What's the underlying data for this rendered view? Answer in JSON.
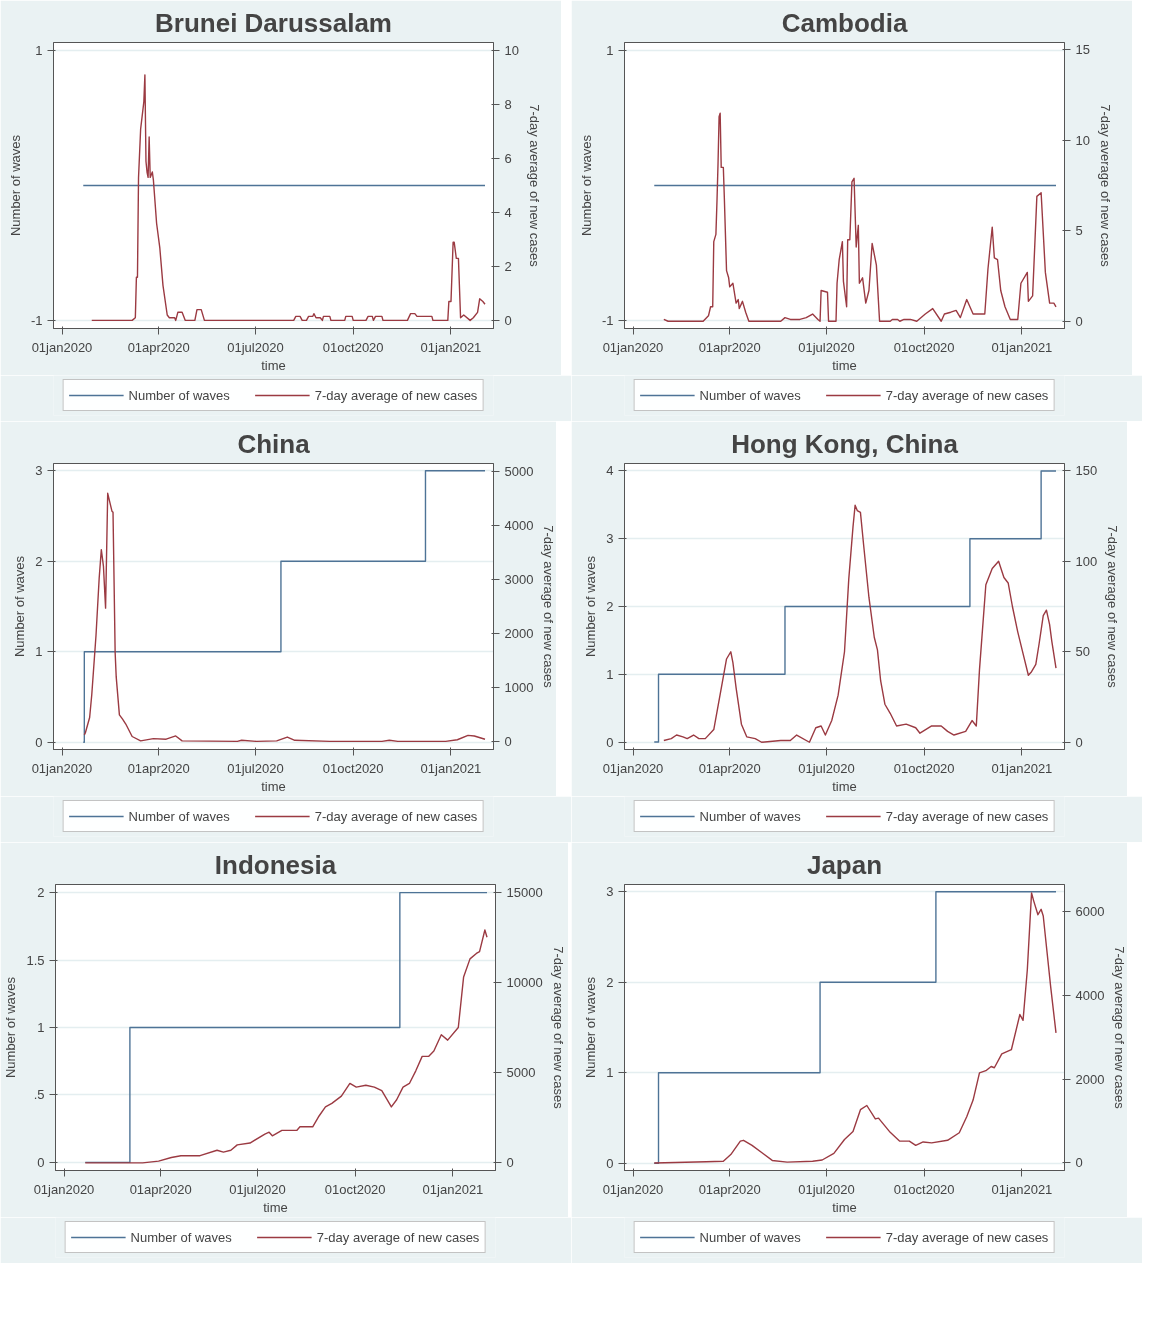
{
  "chart_data": [
    {
      "type": "line",
      "title": "Brunei Darussalam",
      "xlabel": "time",
      "ylabel": "Number of waves",
      "y2label": "7-day average of new cases",
      "xlim": [
        "2019-12-24",
        "2021-02-10"
      ],
      "xticks": [
        {
          "value": "2020-01-01",
          "label": "01jan2020"
        },
        {
          "value": "2020-04-01",
          "label": "01apr2020"
        },
        {
          "value": "2020-07-01",
          "label": "01jul2020"
        },
        {
          "value": "2020-10-01",
          "label": "01oct2020"
        },
        {
          "value": "2021-01-01",
          "label": "01jan2021"
        }
      ],
      "ylim": [
        -1.06,
        1.06
      ],
      "yticks": [
        -1,
        1
      ],
      "y2lim": [
        -0.3,
        10.3
      ],
      "y2ticks": [
        0,
        2,
        4,
        6,
        8,
        10
      ],
      "grid": "y",
      "legend": "bottom",
      "series": [
        {
          "name": "Number of waves",
          "type": "step",
          "color": "#4e7396",
          "x": [
            "2020-01-21",
            "2021-02-02"
          ],
          "values": [
            0,
            0
          ]
        },
        {
          "name": "7-day average of new cases",
          "axis": "y2",
          "color": "#9b3a42",
          "x": [
            "2020-01-29",
            "2020-03-07",
            "2020-03-10",
            "2020-03-11",
            "2020-03-12",
            "2020-03-13",
            "2020-03-15",
            "2020-03-18",
            "2020-03-19",
            "2020-03-20",
            "2020-03-21",
            "2020-03-22",
            "2020-03-23",
            "2020-03-24",
            "2020-03-26",
            "2020-03-27",
            "2020-03-30",
            "2020-04-02",
            "2020-04-05",
            "2020-04-09",
            "2020-04-11",
            "2020-04-16",
            "2020-04-17",
            "2020-04-19",
            "2020-04-23",
            "2020-04-26",
            "2020-05-05",
            "2020-05-07",
            "2020-05-11",
            "2020-05-14",
            "2020-08-06",
            "2020-08-08",
            "2020-08-12",
            "2020-08-14",
            "2020-08-18",
            "2020-08-20",
            "2020-08-24",
            "2020-08-25",
            "2020-08-27",
            "2020-08-31",
            "2020-09-02",
            "2020-09-03",
            "2020-09-09",
            "2020-09-10",
            "2020-09-23",
            "2020-09-24",
            "2020-09-30",
            "2020-10-01",
            "2020-10-13",
            "2020-10-15",
            "2020-10-19",
            "2020-10-20",
            "2020-10-22",
            "2020-10-28",
            "2020-10-29",
            "2020-11-21",
            "2020-11-24",
            "2020-11-28",
            "2020-11-30",
            "2020-12-14",
            "2020-12-15",
            "2020-12-29",
            "2020-12-30",
            "2021-01-01",
            "2021-01-03",
            "2021-01-04",
            "2021-01-06",
            "2021-01-08",
            "2021-01-10",
            "2021-01-13",
            "2021-01-19",
            "2021-01-22",
            "2021-01-26",
            "2021-01-28",
            "2021-01-31",
            "2021-02-02"
          ],
          "values": [
            0,
            0,
            0.1,
            1.6,
            1.6,
            5.3,
            7.1,
            8.1,
            9.1,
            5.9,
            5.5,
            5.3,
            6.8,
            5.3,
            5.5,
            5.2,
            3.6,
            2.7,
            1.3,
            0.2,
            0.1,
            0.1,
            0,
            0.3,
            0.3,
            0,
            0,
            0.4,
            0.4,
            0,
            0,
            0.15,
            0.15,
            0,
            0,
            0.15,
            0.15,
            0.25,
            0.1,
            0.1,
            0,
            0.15,
            0.15,
            0,
            0,
            0.15,
            0.15,
            0,
            0,
            0.15,
            0.15,
            0,
            0.15,
            0.15,
            0,
            0,
            0.25,
            0.25,
            0.15,
            0.15,
            0,
            0,
            0.7,
            0.7,
            2.9,
            2.9,
            2.3,
            2.3,
            0.1,
            0.2,
            0,
            0.1,
            0.3,
            0.8,
            0.7,
            0.6
          ]
        }
      ]
    },
    {
      "type": "line",
      "title": "Cambodia",
      "xlabel": "time",
      "ylabel": "Number of waves",
      "y2label": "7-day average of new cases",
      "xlim": [
        "2019-12-24",
        "2021-02-10"
      ],
      "xticks": [
        {
          "value": "2020-01-01",
          "label": "01jan2020"
        },
        {
          "value": "2020-04-01",
          "label": "01apr2020"
        },
        {
          "value": "2020-07-01",
          "label": "01jul2020"
        },
        {
          "value": "2020-10-01",
          "label": "01oct2020"
        },
        {
          "value": "2021-01-01",
          "label": "01jan2021"
        }
      ],
      "ylim": [
        -1.06,
        1.06
      ],
      "yticks": [
        -1,
        1
      ],
      "y2lim": [
        -0.4,
        15.4
      ],
      "y2ticks": [
        0,
        5,
        10,
        15
      ],
      "grid": "y",
      "legend": "bottom",
      "series": [
        {
          "name": "Number of waves",
          "type": "step",
          "color": "#4e7396",
          "x": [
            "2020-01-21",
            "2021-02-02"
          ],
          "values": [
            0,
            0
          ]
        },
        {
          "name": "7-day average of new cases",
          "axis": "y2",
          "color": "#9b3a42",
          "x": [
            "2020-01-30",
            "2020-02-03",
            "2020-03-07",
            "2020-03-12",
            "2020-03-14",
            "2020-03-16",
            "2020-03-17",
            "2020-03-19",
            "2020-03-20",
            "2020-03-21",
            "2020-03-22",
            "2020-03-23",
            "2020-03-24",
            "2020-03-26",
            "2020-03-27",
            "2020-03-29",
            "2020-03-31",
            "2020-04-01",
            "2020-04-04",
            "2020-04-07",
            "2020-04-09",
            "2020-04-10",
            "2020-04-13",
            "2020-04-16",
            "2020-04-19",
            "2020-05-19",
            "2020-05-23",
            "2020-05-28",
            "2020-06-06",
            "2020-06-12",
            "2020-06-18",
            "2020-06-23",
            "2020-06-25",
            "2020-06-26",
            "2020-07-02",
            "2020-07-03",
            "2020-07-10",
            "2020-07-11",
            "2020-07-13",
            "2020-07-16",
            "2020-07-17",
            "2020-07-20",
            "2020-07-21",
            "2020-07-23",
            "2020-07-25",
            "2020-07-27",
            "2020-07-29",
            "2020-07-31",
            "2020-08-01",
            "2020-08-04",
            "2020-08-07",
            "2020-08-10",
            "2020-08-13",
            "2020-08-17",
            "2020-08-20",
            "2020-08-30",
            "2020-09-01",
            "2020-09-06",
            "2020-09-08",
            "2020-09-12",
            "2020-09-18",
            "2020-09-24",
            "2020-10-02",
            "2020-10-09",
            "2020-10-17",
            "2020-10-20",
            "2020-10-26",
            "2020-10-31",
            "2020-11-04",
            "2020-11-10",
            "2020-11-16",
            "2020-11-27",
            "2020-11-30",
            "2020-12-04",
            "2020-12-06",
            "2020-12-09",
            "2020-12-12",
            "2020-12-16",
            "2020-12-21",
            "2020-12-28",
            "2020-12-31",
            "2021-01-06",
            "2021-01-07",
            "2021-01-11",
            "2021-01-15",
            "2021-01-19",
            "2021-01-23",
            "2021-01-27",
            "2021-01-31",
            "2021-02-02"
          ],
          "values": [
            0.1,
            0,
            0,
            0.3,
            0.8,
            0.8,
            4.4,
            4.8,
            6.6,
            8.7,
            11.3,
            11.5,
            8.5,
            8.5,
            6.7,
            2.8,
            2.4,
            1.9,
            2.1,
            1.0,
            1.2,
            0.7,
            1.1,
            0.5,
            0,
            0,
            0.2,
            0.1,
            0.1,
            0.2,
            0.4,
            0.1,
            0,
            1.7,
            1.6,
            0,
            0,
            2.1,
            3.4,
            4.4,
            2.2,
            0.8,
            4.5,
            4.5,
            7.7,
            7.9,
            4.1,
            5.3,
            2.1,
            2.4,
            1.0,
            1.7,
            4.3,
            3.1,
            0,
            0,
            0.1,
            0.1,
            0,
            0.1,
            0.1,
            0,
            0.4,
            0.7,
            0,
            0.4,
            0.5,
            0.6,
            0.2,
            1.2,
            0.4,
            0.4,
            2.9,
            5.2,
            3.5,
            3.4,
            1.7,
            0.8,
            0.1,
            0.1,
            2.1,
            2.7,
            1.1,
            1.4,
            6.9,
            7.1,
            2.7,
            1.0,
            1.0,
            0.8
          ]
        }
      ]
    },
    {
      "type": "line",
      "title": "China",
      "xlabel": "time",
      "ylabel": "Number of waves",
      "y2label": "7-day average of new cases",
      "xlim": [
        "2019-12-24",
        "2021-02-10"
      ],
      "xticks": [
        {
          "value": "2020-01-01",
          "label": "01jan2020"
        },
        {
          "value": "2020-04-01",
          "label": "01apr2020"
        },
        {
          "value": "2020-07-01",
          "label": "01jul2020"
        },
        {
          "value": "2020-10-01",
          "label": "01oct2020"
        },
        {
          "value": "2021-01-01",
          "label": "01jan2021"
        }
      ],
      "ylim": [
        -0.08,
        3.08
      ],
      "yticks": [
        0,
        1,
        2,
        3
      ],
      "y2lim": [
        -140,
        5140
      ],
      "y2ticks": [
        0,
        1000,
        2000,
        3000,
        4000,
        5000
      ],
      "grid": "y",
      "legend": "bottom",
      "series": [
        {
          "name": "Number of waves",
          "type": "step",
          "color": "#4e7396",
          "x": [
            "2020-01-21",
            "2020-01-22",
            "2020-07-25",
            "2020-12-08",
            "2021-02-02"
          ],
          "values": [
            0,
            1,
            2,
            3,
            3
          ]
        },
        {
          "name": "7-day average of new cases",
          "axis": "y2",
          "color": "#9b3a42",
          "x": [
            "2020-01-22",
            "2020-01-23",
            "2020-01-27",
            "2020-01-29",
            "2020-02-02",
            "2020-02-05",
            "2020-02-07",
            "2020-02-09",
            "2020-02-11",
            "2020-02-13",
            "2020-02-17",
            "2020-02-18",
            "2020-02-20",
            "2020-02-21",
            "2020-02-24",
            "2020-02-27",
            "2020-03-01",
            "2020-03-07",
            "2020-03-15",
            "2020-03-27",
            "2020-04-08",
            "2020-04-17",
            "2020-04-23",
            "2020-06-14",
            "2020-06-18",
            "2020-07-02",
            "2020-07-21",
            "2020-07-31",
            "2020-08-07",
            "2020-09-09",
            "2020-10-28",
            "2020-11-04",
            "2020-11-12",
            "2020-12-27",
            "2021-01-07",
            "2021-01-17",
            "2021-01-23",
            "2021-02-02"
          ],
          "values": [
            130,
            170,
            450,
            870,
            1970,
            3030,
            3550,
            3240,
            2470,
            4590,
            4260,
            4240,
            1650,
            1200,
            500,
            420,
            330,
            100,
            20,
            60,
            50,
            110,
            20,
            10,
            30,
            10,
            20,
            90,
            30,
            10,
            10,
            30,
            10,
            10,
            40,
            120,
            110,
            50
          ]
        }
      ]
    },
    {
      "type": "line",
      "title": "Hong Kong, China",
      "xlabel": "time",
      "ylabel": "Number of waves",
      "y2label": "7-day average of new cases",
      "xlim": [
        "2019-12-24",
        "2021-02-10"
      ],
      "xticks": [
        {
          "value": "2020-01-01",
          "label": "01jan2020"
        },
        {
          "value": "2020-04-01",
          "label": "01apr2020"
        },
        {
          "value": "2020-07-01",
          "label": "01jul2020"
        },
        {
          "value": "2020-10-01",
          "label": "01oct2020"
        },
        {
          "value": "2021-01-01",
          "label": "01jan2021"
        }
      ],
      "ylim": [
        -0.11,
        4.11
      ],
      "yticks": [
        0,
        1,
        2,
        3,
        4
      ],
      "y2lim": [
        -4,
        154
      ],
      "y2ticks": [
        0,
        50,
        100,
        150
      ],
      "grid": "y",
      "legend": "bottom",
      "series": [
        {
          "name": "Number of waves",
          "type": "step",
          "color": "#4e7396",
          "x": [
            "2020-01-21",
            "2020-01-25",
            "2020-05-23",
            "2020-11-13",
            "2021-01-19",
            "2021-02-02"
          ],
          "values": [
            0,
            1,
            2,
            3,
            4,
            4
          ]
        },
        {
          "name": "7-day average of new cases",
          "axis": "y2",
          "color": "#9b3a42",
          "x": [
            "2020-01-30",
            "2020-02-06",
            "2020-02-11",
            "2020-02-17",
            "2020-02-21",
            "2020-02-27",
            "2020-03-03",
            "2020-03-09",
            "2020-03-17",
            "2020-03-21",
            "2020-03-25",
            "2020-03-29",
            "2020-04-02",
            "2020-04-04",
            "2020-04-07",
            "2020-04-12",
            "2020-04-17",
            "2020-04-25",
            "2020-05-01",
            "2020-05-19",
            "2020-05-28",
            "2020-06-03",
            "2020-06-15",
            "2020-06-21",
            "2020-06-26",
            "2020-06-30",
            "2020-07-06",
            "2020-07-12",
            "2020-07-15",
            "2020-07-18",
            "2020-07-22",
            "2020-07-26",
            "2020-07-28",
            "2020-07-30",
            "2020-08-02",
            "2020-08-05",
            "2020-08-10",
            "2020-08-15",
            "2020-08-18",
            "2020-08-21",
            "2020-08-25",
            "2020-08-30",
            "2020-09-05",
            "2020-09-14",
            "2020-09-23",
            "2020-09-27",
            "2020-10-08",
            "2020-10-17",
            "2020-10-23",
            "2020-10-29",
            "2020-11-09",
            "2020-11-15",
            "2020-11-19",
            "2020-11-22",
            "2020-11-28",
            "2020-12-04",
            "2020-12-10",
            "2020-12-15",
            "2020-12-19",
            "2020-12-23",
            "2020-12-28",
            "2021-01-02",
            "2021-01-07",
            "2021-01-10",
            "2021-01-14",
            "2021-01-17",
            "2021-01-21",
            "2021-01-24",
            "2021-01-27",
            "2021-01-29",
            "2021-02-02"
          ],
          "values": [
            1,
            2,
            4,
            3,
            2,
            4,
            2,
            2,
            7,
            20,
            33,
            46,
            50,
            44,
            30,
            10,
            3,
            2,
            0,
            1,
            1,
            4,
            0,
            8,
            9,
            4,
            12,
            26,
            38,
            50,
            90,
            119,
            131,
            128,
            127,
            109,
            80,
            58,
            51,
            34,
            21,
            16,
            9,
            10,
            8,
            5,
            9,
            9,
            6,
            4,
            6,
            12,
            9,
            40,
            87,
            96,
            100,
            91,
            88,
            75,
            61,
            49,
            37,
            39,
            43,
            54,
            70,
            73,
            65,
            56,
            41
          ]
        }
      ]
    },
    {
      "type": "line",
      "title": "Indonesia",
      "xlabel": "time",
      "ylabel": "Number of waves",
      "y2label": "7-day average of new cases",
      "xlim": [
        "2019-12-24",
        "2021-02-10"
      ],
      "xticks": [
        {
          "value": "2020-01-01",
          "label": "01jan2020"
        },
        {
          "value": "2020-04-01",
          "label": "01apr2020"
        },
        {
          "value": "2020-07-01",
          "label": "01jul2020"
        },
        {
          "value": "2020-10-01",
          "label": "01oct2020"
        },
        {
          "value": "2021-01-01",
          "label": "01jan2021"
        }
      ],
      "ylim": [
        -0.06,
        2.06
      ],
      "yticks": [
        0,
        {
          "value": 0.5,
          "label": ".5"
        },
        1,
        1.5,
        2
      ],
      "y2lim": [
        -420,
        15420
      ],
      "y2ticks": [
        0,
        5000,
        10000,
        15000
      ],
      "grid": "y",
      "legend": "bottom",
      "series": [
        {
          "name": "Number of waves",
          "type": "step",
          "color": "#4e7396",
          "x": [
            "2020-01-21",
            "2020-03-03",
            "2020-11-12",
            "2021-02-02"
          ],
          "values": [
            0,
            1,
            2,
            2
          ]
        },
        {
          "name": "7-day average of new cases",
          "axis": "y2",
          "color": "#9b3a42",
          "x": [
            "2020-01-21",
            "2020-03-15",
            "2020-03-30",
            "2020-04-11",
            "2020-04-20",
            "2020-05-08",
            "2020-05-24",
            "2020-05-30",
            "2020-06-06",
            "2020-06-12",
            "2020-06-24",
            "2020-07-08",
            "2020-07-12",
            "2020-07-15",
            "2020-07-24",
            "2020-08-07",
            "2020-08-10",
            "2020-08-22",
            "2020-08-28",
            "2020-09-03",
            "2020-09-09",
            "2020-09-18",
            "2020-09-26",
            "2020-10-02",
            "2020-10-11",
            "2020-10-19",
            "2020-10-26",
            "2020-10-31",
            "2020-11-04",
            "2020-11-09",
            "2020-11-15",
            "2020-11-21",
            "2020-11-27",
            "2020-12-03",
            "2020-12-09",
            "2020-12-14",
            "2020-12-21",
            "2020-12-27",
            "2021-01-06",
            "2021-01-11",
            "2021-01-17",
            "2021-01-23",
            "2021-01-26",
            "2021-01-31",
            "2021-02-02"
          ],
          "values": [
            0,
            0,
            100,
            300,
            400,
            400,
            700,
            600,
            700,
            1000,
            1100,
            1600,
            1700,
            1500,
            1800,
            1800,
            2000,
            2000,
            2600,
            3100,
            3300,
            3700,
            4400,
            4200,
            4300,
            4200,
            4000,
            3500,
            3100,
            3500,
            4200,
            4400,
            5100,
            5900,
            5900,
            6200,
            7100,
            6800,
            7500,
            10300,
            11300,
            11600,
            11700,
            12900,
            12500
          ]
        }
      ]
    },
    {
      "type": "line",
      "title": "Japan",
      "xlabel": "time",
      "ylabel": "Number of waves",
      "y2label": "7-day average of new cases",
      "xlim": [
        "2019-12-24",
        "2021-02-10"
      ],
      "xticks": [
        {
          "value": "2020-01-01",
          "label": "01jan2020"
        },
        {
          "value": "2020-04-01",
          "label": "01apr2020"
        },
        {
          "value": "2020-07-01",
          "label": "01jul2020"
        },
        {
          "value": "2020-10-01",
          "label": "01oct2020"
        },
        {
          "value": "2021-01-01",
          "label": "01jan2021"
        }
      ],
      "ylim": [
        -0.08,
        3.08
      ],
      "yticks": [
        0,
        1,
        2,
        3
      ],
      "y2lim": [
        -180,
        6640
      ],
      "y2ticks": [
        0,
        2000,
        4000,
        6000
      ],
      "grid": "y",
      "legend": "bottom",
      "series": [
        {
          "name": "Number of waves",
          "type": "step",
          "color": "#4e7396",
          "x": [
            "2020-01-21",
            "2020-01-25",
            "2020-06-25",
            "2020-10-12",
            "2021-02-02"
          ],
          "values": [
            0,
            1,
            2,
            3,
            3
          ]
        },
        {
          "name": "7-day average of new cases",
          "axis": "y2",
          "color": "#9b3a42",
          "x": [
            "2020-01-21",
            "2020-03-10",
            "2020-03-26",
            "2020-04-02",
            "2020-04-11",
            "2020-04-14",
            "2020-04-22",
            "2020-05-02",
            "2020-05-11",
            "2020-05-25",
            "2020-06-18",
            "2020-06-27",
            "2020-07-08",
            "2020-07-18",
            "2020-07-26",
            "2020-08-02",
            "2020-08-08",
            "2020-08-16",
            "2020-08-19",
            "2020-08-30",
            "2020-09-08",
            "2020-09-17",
            "2020-09-23",
            "2020-09-30",
            "2020-10-08",
            "2020-10-23",
            "2020-11-03",
            "2020-11-10",
            "2020-11-16",
            "2020-11-22",
            "2020-11-28",
            "2020-12-03",
            "2020-12-06",
            "2020-12-13",
            "2020-12-22",
            "2020-12-30",
            "2021-01-02",
            "2021-01-06",
            "2021-01-10",
            "2021-01-12",
            "2021-01-16",
            "2021-01-19",
            "2021-01-21",
            "2021-01-28",
            "2021-02-02"
          ],
          "values": [
            0,
            30,
            40,
            200,
            520,
            540,
            420,
            230,
            60,
            20,
            40,
            70,
            230,
            560,
            750,
            1270,
            1370,
            1050,
            1070,
            730,
            520,
            520,
            420,
            500,
            480,
            540,
            720,
            1100,
            1500,
            2150,
            2200,
            2300,
            2270,
            2600,
            2700,
            3540,
            3400,
            4600,
            6440,
            6250,
            5920,
            6050,
            5890,
            4200,
            3100
          ]
        }
      ]
    }
  ]
}
